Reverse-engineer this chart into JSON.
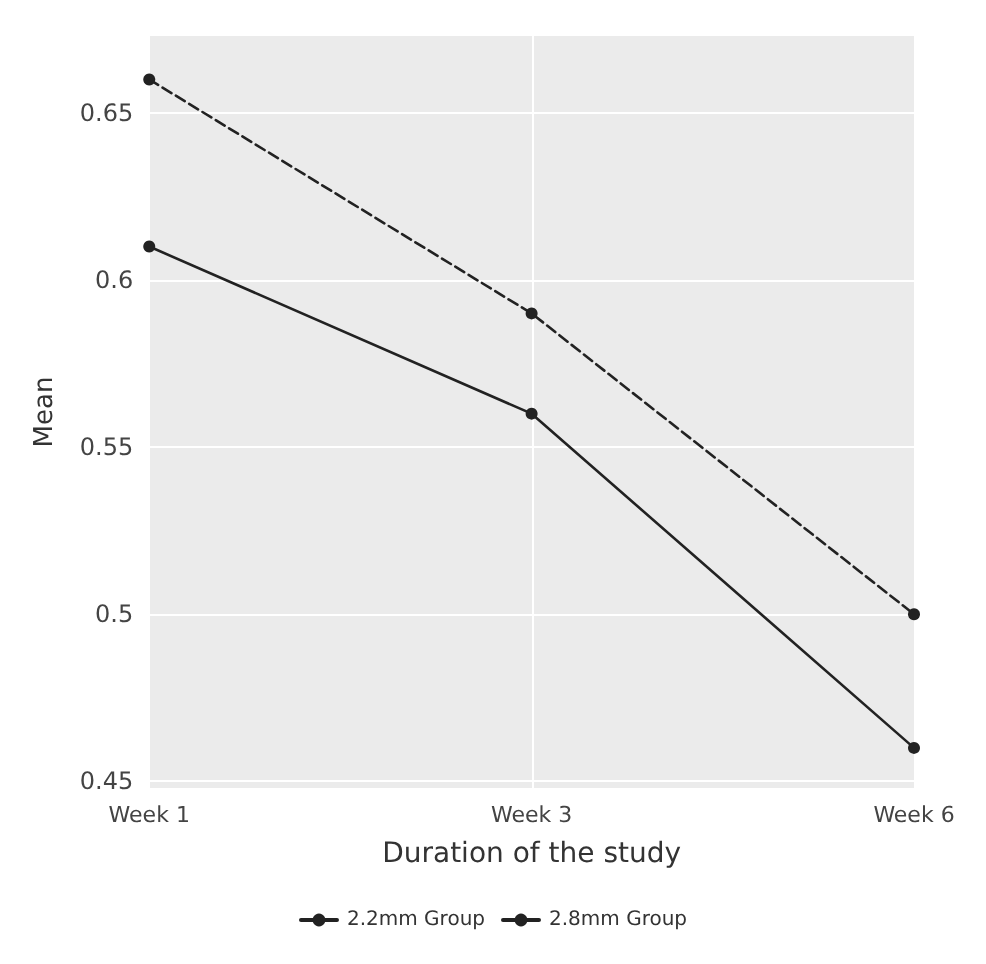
{
  "chart_data": {
    "type": "line",
    "xlabel": "Duration of the study",
    "ylabel": "Mean",
    "categories": [
      "Week 1",
      "Week 3",
      "Week 6"
    ],
    "series": [
      {
        "name": "2.2mm Group",
        "color": "#222222",
        "values": [
          0.61,
          0.56,
          0.46
        ],
        "line_style": "solid"
      },
      {
        "name": "2.8mm Group",
        "color": "#222222",
        "values": [
          0.66,
          0.59,
          0.5
        ],
        "line_style": "dashed"
      }
    ],
    "ylim": [
      0.448,
      0.673
    ],
    "yticks": [
      0.45,
      0.5,
      0.55,
      0.6,
      0.65
    ],
    "grid": true,
    "legend": "bottom",
    "marker": "circle"
  }
}
